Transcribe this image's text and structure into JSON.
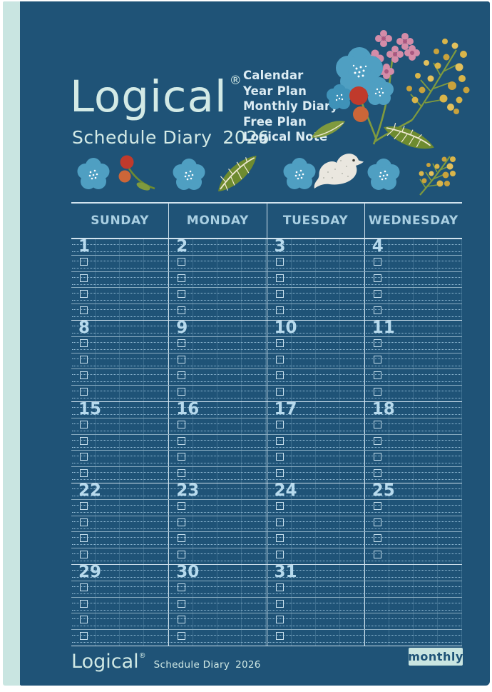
{
  "brand": {
    "logo": "Logical",
    "registered": "®",
    "subtitle": "Schedule Diary",
    "year": "2026"
  },
  "features": [
    "Calendar",
    "Year Plan",
    "Monthly Diary",
    "Free Plan",
    "Logical Note"
  ],
  "decorations": [
    "blue-flower",
    "berries",
    "blue-flower",
    "leaf",
    "blue-flower",
    "dove",
    "blue-flower",
    "mimosa",
    "bouquet"
  ],
  "calendar": {
    "day_headers": [
      "SUNDAY",
      "MONDAY",
      "TUESDAY",
      "WEDNESDAY"
    ],
    "weeks": [
      [
        "1",
        "2",
        "3",
        "4"
      ],
      [
        "8",
        "9",
        "10",
        "11"
      ],
      [
        "15",
        "16",
        "17",
        "18"
      ],
      [
        "22",
        "23",
        "24",
        "25"
      ],
      [
        "29",
        "30",
        "31",
        ""
      ]
    ],
    "rows_per_day": 4
  },
  "footer": {
    "logo": "Logical",
    "registered": "®",
    "subtitle": "Schedule Diary",
    "year": "2026",
    "badge": "monthly"
  },
  "colors": {
    "cover": "#1f5377",
    "spine_mint": "#c9e5e1",
    "brand_text": "#d3eae6",
    "feature_text": "#dcecf3",
    "grid_line": "#e1f0f8",
    "grid_dotted": "#a3cbe3",
    "day_header_text": "#a9cfe2",
    "date_text": "#b7daed",
    "badge_bg": "#c9e5e1",
    "badge_text": "#1f5377",
    "flower_blue": "#4f9fc2",
    "berry_red": "#c03a2c",
    "berry_orange": "#cc6638",
    "pink_flower": "#d48ca8",
    "mimosa_yellow": "#d9b54a",
    "leaf_green": "#6e8b30",
    "bird_white": "#eae7df"
  }
}
